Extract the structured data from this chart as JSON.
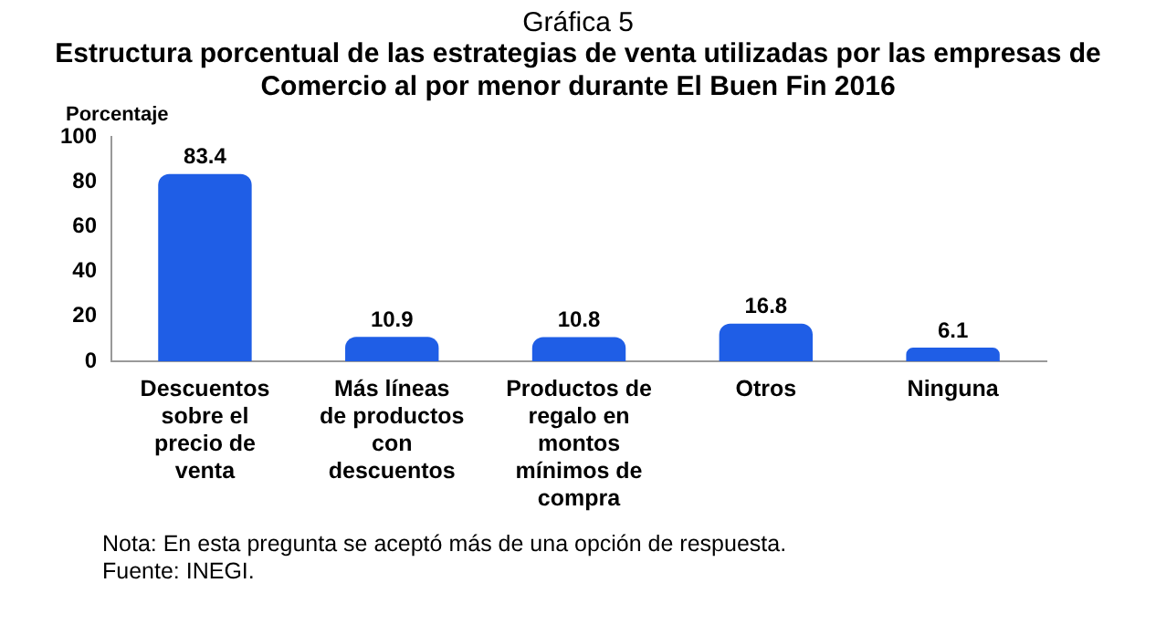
{
  "chart_data": {
    "type": "bar",
    "title": "Gráfica 5",
    "subtitle": "Estructura porcentual de las estrategias de venta utilizadas por las empresas de Comercio al por menor durante El Buen Fin 2016",
    "ylabel": "Porcentaje",
    "categories": [
      "Descuentos sobre el precio de venta",
      "Más líneas de productos con descuentos",
      "Productos de regalo en montos mínimos de compra",
      "Otros",
      "Ninguna"
    ],
    "values": [
      83.4,
      10.9,
      10.8,
      16.8,
      6.1
    ],
    "color": "#1f5ee6",
    "ylim": [
      0,
      100
    ],
    "yticks": [
      0,
      20,
      40,
      60,
      80,
      100
    ],
    "grid": false,
    "data_labels": true,
    "annotations": [
      "Nota: En esta pregunta se aceptó más de una opción de respuesta.",
      "Fuente: INEGI."
    ]
  }
}
